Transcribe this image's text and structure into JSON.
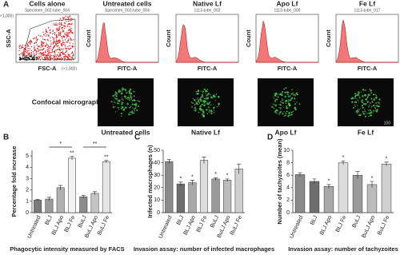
{
  "panel_a": {
    "label": "A",
    "plots": [
      {
        "title": "Cells alone",
        "subtitle": "Specimen_002-tube_004",
        "xlabel": "FSC-A",
        "ylabel": "SSC-A",
        "x_scale": "(×1,000)",
        "y_scale": "(×1,000)"
      },
      {
        "title": "Untreated cells",
        "subtitle": "Specimen_002-tube_004",
        "xlabel": "FITC-A",
        "ylabel": "Count"
      },
      {
        "title": "Native Lf",
        "subtitle": "1113-tube_002",
        "xlabel": "FITC-A",
        "ylabel": "Count"
      },
      {
        "title": "Apo Lf",
        "subtitle": "1113-tube_009",
        "xlabel": "FITC-A",
        "ylabel": "Count"
      },
      {
        "title": "Fe Lf",
        "subtitle": "1113-tube_017",
        "xlabel": "FITC-A",
        "ylabel": "Count"
      }
    ],
    "micrographs": {
      "label": "Confocal micrographs",
      "captions": [
        "Untreated cells",
        "Native Lf",
        "Apo Lf",
        "Fe Lf"
      ],
      "scale_bar": "100"
    }
  },
  "chart_data": [
    {
      "type": "bar",
      "panel": "B",
      "ylabel": "Percentage fold increase",
      "caption": "Phagocytic intensity measured by FACS",
      "categories": [
        "Untreated",
        "BLJ",
        "BLJ Apo",
        "BLJ Fe",
        "BuLJ",
        "BuLJ Apo",
        "BuLJ Fe"
      ],
      "values": [
        1.1,
        1.2,
        2.2,
        4.8,
        1.4,
        1.7,
        4.5
      ],
      "errors": [
        0.05,
        0.15,
        0.2,
        0.15,
        0.1,
        0.15,
        0.1
      ],
      "colors": [
        "#7a7a7a",
        "#9a9a9a",
        "#b0b0b0",
        "#f2f2f2",
        "#8c8c8c",
        "#c4c4c4",
        "#e6e6e6"
      ],
      "significance": [
        null,
        null,
        null,
        "**",
        null,
        null,
        "**"
      ],
      "brackets": [
        "*",
        "**"
      ],
      "ylim": [
        0,
        5.5
      ],
      "yticks": [
        0,
        1,
        2,
        3,
        4,
        5
      ]
    },
    {
      "type": "bar",
      "panel": "C",
      "ylabel": "Infected macrophages (n)",
      "caption": "Invasion assay: number of infected macrophages",
      "categories": [
        "Untreated",
        "BLJ",
        "BLJ Apo",
        "BLJ Fe",
        "BuLJ",
        "BuLJ Apo",
        "BuLJ Fe"
      ],
      "values": [
        41,
        23,
        24,
        42,
        27,
        26,
        35
      ],
      "errors": [
        1.5,
        1.5,
        2,
        2.5,
        1,
        1,
        4
      ],
      "colors": [
        "#8a8a8a",
        "#6e6e6e",
        "#a8a8a8",
        "#dcdcdc",
        "#9a9a9a",
        "#bcbcbc",
        "#d0d0d0"
      ],
      "significance": [
        null,
        "*",
        "*",
        null,
        "*",
        "*",
        null
      ],
      "ylim": [
        0,
        50
      ],
      "yticks": [
        0,
        10,
        20,
        30,
        40,
        50
      ]
    },
    {
      "type": "bar",
      "panel": "D",
      "ylabel": "Number of tachyzoites (mean)",
      "caption": "Invasion assay: number of tachyzoites",
      "categories": [
        "Untreated",
        "BLJ",
        "BLJ Apo",
        "BLJ Fe",
        "BuLJ",
        "BuLJ Apo",
        "BuLJ Fe"
      ],
      "values": [
        6.1,
        5.0,
        4.2,
        8.0,
        6.0,
        4.5,
        7.8
      ],
      "errors": [
        0.3,
        0.4,
        0.3,
        0.3,
        0.6,
        0.5,
        0.3
      ],
      "colors": [
        "#8a8a8a",
        "#6e6e6e",
        "#a8a8a8",
        "#dcdcdc",
        "#9a9a9a",
        "#bcbcbc",
        "#d0d0d0"
      ],
      "significance": [
        null,
        null,
        "*",
        "*",
        null,
        "*",
        "*"
      ],
      "ylim": [
        0,
        10
      ],
      "yticks": [
        0,
        2,
        4,
        6,
        8,
        10
      ]
    }
  ]
}
